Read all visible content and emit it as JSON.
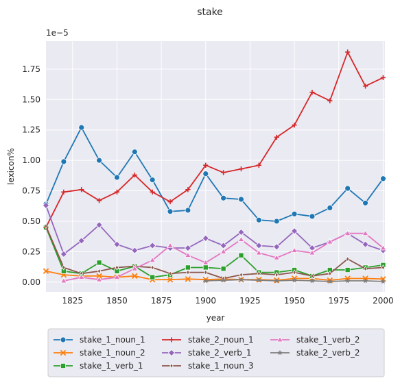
{
  "chart_data": {
    "type": "line",
    "title": "stake",
    "xlabel": "year",
    "ylabel": "lexicon%",
    "y_offset_label": "1e−5",
    "xlim": [
      1810,
      2001
    ],
    "ylim": [
      -0.08,
      1.98
    ],
    "x_ticks": [
      1825,
      1850,
      1875,
      1900,
      1925,
      1950,
      1975,
      2000
    ],
    "x_tick_labels": [
      "1825",
      "1850",
      "1875",
      "1900",
      "1925",
      "1950",
      "1975",
      "2000"
    ],
    "y_ticks": [
      0.0,
      0.25,
      0.5,
      0.75,
      1.0,
      1.25,
      1.5,
      1.75
    ],
    "y_tick_labels": [
      "0.00",
      "0.25",
      "0.50",
      "0.75",
      "1.00",
      "1.25",
      "1.50",
      "1.75"
    ],
    "grid": true,
    "legend_position": "below",
    "x": [
      1810,
      1820,
      1830,
      1840,
      1850,
      1860,
      1870,
      1880,
      1890,
      1900,
      1910,
      1920,
      1930,
      1940,
      1950,
      1960,
      1970,
      1980,
      1990,
      2000
    ],
    "series": [
      {
        "name": "stake_1_noun_1",
        "color": "#1f77b4",
        "marker": "circle",
        "values": [
          0.64,
          0.99,
          1.27,
          1.0,
          0.86,
          1.07,
          0.84,
          0.58,
          0.59,
          0.89,
          0.69,
          0.68,
          0.51,
          0.5,
          0.56,
          0.54,
          0.61,
          0.77,
          0.65,
          0.85
        ]
      },
      {
        "name": "stake_1_noun_2",
        "color": "#ff7f0e",
        "marker": "x",
        "values": [
          0.09,
          0.06,
          0.05,
          0.05,
          0.04,
          0.05,
          0.02,
          0.02,
          0.025,
          0.02,
          0.025,
          0.02,
          0.02,
          0.015,
          0.03,
          0.03,
          0.015,
          0.03,
          0.03,
          0.025
        ]
      },
      {
        "name": "stake_1_verb_1",
        "color": "#2ca02c",
        "marker": "square",
        "values": [
          0.45,
          0.09,
          0.07,
          0.16,
          0.09,
          0.13,
          0.04,
          0.06,
          0.12,
          0.12,
          0.11,
          0.22,
          0.08,
          0.08,
          0.1,
          0.05,
          0.1,
          0.1,
          0.12,
          0.14
        ]
      },
      {
        "name": "stake_2_noun_1",
        "color": "#d62728",
        "marker": "plus",
        "values": [
          0.45,
          0.74,
          0.76,
          0.67,
          0.74,
          0.88,
          0.74,
          0.66,
          0.76,
          0.96,
          0.9,
          0.93,
          0.96,
          1.19,
          1.29,
          1.56,
          1.49,
          1.89,
          1.61,
          1.68
        ]
      },
      {
        "name": "stake_2_verb_1",
        "color": "#9467bd",
        "marker": "diamond",
        "values": [
          0.63,
          0.23,
          0.34,
          0.47,
          0.31,
          0.26,
          0.3,
          0.28,
          0.28,
          0.36,
          0.3,
          0.41,
          0.3,
          0.29,
          0.42,
          0.28,
          0.33,
          0.4,
          0.31,
          0.26
        ]
      },
      {
        "name": "stake_1_noun_3",
        "color": "#8c564b",
        "marker": "thin_diamond",
        "values": [
          0.46,
          0.12,
          0.07,
          0.09,
          0.12,
          0.13,
          0.12,
          0.07,
          0.08,
          0.08,
          0.03,
          0.06,
          0.07,
          0.06,
          0.08,
          0.05,
          0.07,
          0.19,
          0.11,
          0.12
        ]
      },
      {
        "name": "stake_1_verb_2",
        "color": "#e377c2",
        "marker": "triangle",
        "values": [
          null,
          0.01,
          0.04,
          0.02,
          0.04,
          0.11,
          0.18,
          0.3,
          0.22,
          0.16,
          0.25,
          0.35,
          0.24,
          0.2,
          0.26,
          0.24,
          0.33,
          0.4,
          0.4,
          0.28
        ]
      },
      {
        "name": "stake_2_verb_2",
        "color": "#7f7f7f",
        "marker": "star",
        "values": [
          null,
          null,
          null,
          null,
          null,
          null,
          null,
          null,
          null,
          0.01,
          0.015,
          0.02,
          0.015,
          0.01,
          0.015,
          0.01,
          0.005,
          0.01,
          0.01,
          0.005
        ]
      }
    ]
  }
}
